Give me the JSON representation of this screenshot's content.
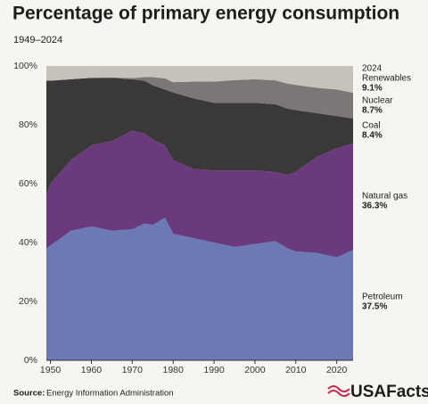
{
  "chart_data": {
    "type": "stacked-area",
    "title": "Percentage of primary energy consumption",
    "subtitle": "1949–2024",
    "x": [
      1949,
      1950,
      1955,
      1960,
      1965,
      1970,
      1973,
      1975,
      1978,
      1980,
      1985,
      1990,
      1995,
      2000,
      2005,
      2008,
      2010,
      2015,
      2020,
      2024
    ],
    "series": [
      {
        "name": "Petroleum",
        "color": "#6b79b5",
        "values": [
          38,
          39,
          44,
          45.5,
          44,
          44.5,
          46.5,
          46,
          48.5,
          43,
          41.5,
          40,
          38.5,
          39.5,
          40.5,
          38,
          37,
          36.5,
          35,
          37.5
        ],
        "value_labels": [
          null,
          null,
          null,
          null,
          null,
          null,
          null,
          null,
          null,
          null,
          null,
          null,
          null,
          null,
          null,
          null,
          null,
          null,
          null,
          "37.5%"
        ]
      },
      {
        "name": "Natural gas",
        "color": "#6a3a7c",
        "values": [
          18,
          21,
          24,
          27.5,
          30.5,
          33.5,
          30.5,
          29,
          24.5,
          25,
          23.5,
          24.5,
          26,
          25,
          23.5,
          25,
          27,
          32.5,
          37,
          36.3
        ],
        "value_labels": [
          null,
          null,
          null,
          null,
          null,
          null,
          null,
          null,
          null,
          null,
          null,
          null,
          null,
          null,
          null,
          null,
          null,
          null,
          null,
          "36.3%"
        ]
      },
      {
        "name": "Coal",
        "color": "#3a3838",
        "values": [
          39,
          35,
          27.5,
          23,
          21.5,
          17.5,
          18,
          18.5,
          19,
          23,
          24,
          23,
          23,
          23,
          23,
          22.5,
          21,
          15,
          11,
          8.4
        ],
        "value_labels": [
          null,
          null,
          null,
          null,
          null,
          null,
          null,
          null,
          null,
          null,
          null,
          null,
          null,
          null,
          null,
          null,
          null,
          null,
          null,
          "8.4%"
        ]
      },
      {
        "name": "Nuclear",
        "color": "#7b7776",
        "values": [
          0,
          0,
          0,
          0,
          0.1,
          0.4,
          1.2,
          2.7,
          3.8,
          3.5,
          5.7,
          7.2,
          7.7,
          8,
          8.1,
          8.5,
          8.6,
          8.6,
          9,
          8.7
        ],
        "value_labels": [
          null,
          null,
          null,
          null,
          null,
          null,
          null,
          null,
          null,
          null,
          null,
          null,
          null,
          null,
          null,
          null,
          null,
          null,
          null,
          "8.7%"
        ]
      },
      {
        "name": "Renewables",
        "color": "#c6c2bb",
        "values": [
          5,
          5,
          4.5,
          4,
          3.9,
          4.1,
          3.8,
          3.8,
          4.2,
          5.5,
          5.3,
          5.3,
          4.8,
          4.5,
          4.9,
          6,
          6.4,
          7.4,
          8,
          9.1
        ],
        "value_labels": [
          null,
          null,
          null,
          null,
          null,
          null,
          null,
          null,
          null,
          null,
          null,
          null,
          null,
          null,
          null,
          null,
          null,
          null,
          null,
          "9.1%"
        ]
      }
    ],
    "xlim": [
      1949,
      2024
    ],
    "xticks": [
      1950,
      1960,
      1970,
      1980,
      1990,
      2000,
      2010,
      2020
    ],
    "ylim": [
      0,
      100
    ],
    "yticks": [
      {
        "value": 0,
        "label": "0%"
      },
      {
        "value": 20,
        "label": "20%"
      },
      {
        "value": 40,
        "label": "40%"
      },
      {
        "value": 60,
        "label": "60%"
      },
      {
        "value": 80,
        "label": "80%"
      },
      {
        "value": 100,
        "label": "100%"
      }
    ],
    "source_label": "Source:",
    "source": "Energy Information Administration",
    "logo": "USAFacts"
  }
}
